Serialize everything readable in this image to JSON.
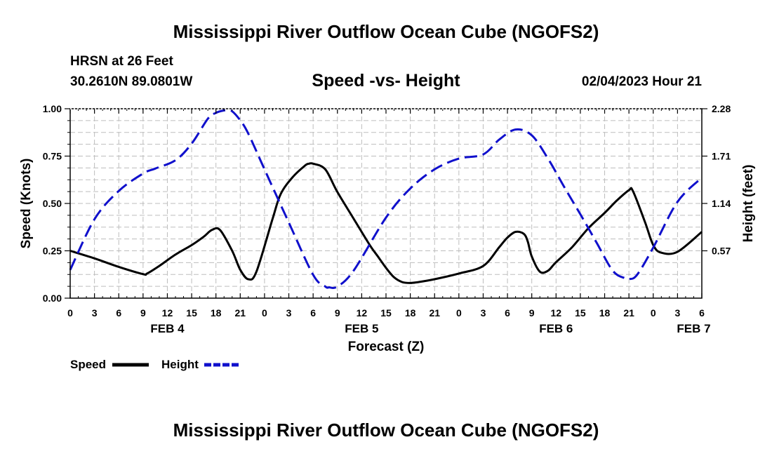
{
  "page": {
    "top_title": "Mississippi River Outflow Ocean Cube (NGOFS2)",
    "bottom_title": "Mississippi River Outflow Ocean Cube (NGOFS2)"
  },
  "header": {
    "station": "HRSN at 26 Feet",
    "coords": "30.2610N  89.0801W",
    "subtitle": "Speed -vs- Height",
    "datetime": "02/04/2023 Hour 21"
  },
  "colors": {
    "speed": "#000000",
    "height": "#1010cc",
    "grid": "#bdbdbd"
  },
  "chart_data": {
    "type": "line",
    "title": "Speed -vs- Height",
    "xlabel": "Forecast (Z)",
    "ylabel": "Speed (Knots)",
    "y2label": "Height (feet)",
    "x_units": "hours from FEB 4 00Z",
    "xlim": [
      0,
      78
    ],
    "ylim": [
      0,
      1
    ],
    "y2lim": [
      0,
      2.28
    ],
    "x_tick_values": [
      0,
      3,
      6,
      9,
      12,
      15,
      18,
      21,
      24,
      27,
      30,
      33,
      36,
      39,
      42,
      45,
      48,
      51,
      54,
      57,
      60,
      63,
      66,
      69,
      72,
      75,
      78
    ],
    "x_tick_labels": [
      "0",
      "3",
      "6",
      "9",
      "12",
      "15",
      "18",
      "21",
      "0",
      "3",
      "6",
      "9",
      "12",
      "15",
      "18",
      "21",
      "0",
      "3",
      "6",
      "9",
      "12",
      "15",
      "18",
      "21",
      "0",
      "3",
      "6"
    ],
    "y_tick_values": [
      0,
      0.25,
      0.5,
      0.75,
      1.0
    ],
    "y_tick_labels": [
      "0.00",
      "0.25",
      "0.50",
      "0.75",
      "1.00"
    ],
    "y2_tick_values": [
      0.57,
      1.14,
      1.71,
      2.28
    ],
    "y2_tick_labels": [
      "0.57",
      "1.14",
      "1.71",
      "2.28"
    ],
    "date_labels": [
      {
        "x": 12,
        "label": "FEB 4"
      },
      {
        "x": 36,
        "label": "FEB 5"
      },
      {
        "x": 60,
        "label": "FEB 6"
      },
      {
        "x": 77,
        "label": "FEB 7"
      }
    ],
    "series": [
      {
        "name": "Speed",
        "axis": "left",
        "style": "solid",
        "x": [
          0,
          3,
          6,
          9,
          9.5,
          11,
          13,
          15,
          16.5,
          17.5,
          18.5,
          20,
          21,
          22,
          23,
          25,
          26,
          27.5,
          29,
          29.5,
          30,
          31.5,
          33,
          35,
          37,
          38,
          39,
          40,
          41,
          42,
          43,
          45,
          48,
          51,
          53,
          54,
          55,
          56,
          56.5,
          57,
          58,
          59,
          60,
          62,
          64,
          66,
          67.5,
          69,
          69.5,
          71,
          72,
          73,
          75,
          78
        ],
        "y": [
          0.25,
          0.21,
          0.165,
          0.127,
          0.13,
          0.17,
          0.23,
          0.28,
          0.325,
          0.36,
          0.36,
          0.25,
          0.15,
          0.1,
          0.14,
          0.42,
          0.55,
          0.64,
          0.7,
          0.71,
          0.71,
          0.68,
          0.56,
          0.42,
          0.28,
          0.22,
          0.16,
          0.11,
          0.085,
          0.08,
          0.085,
          0.1,
          0.13,
          0.17,
          0.27,
          0.32,
          0.35,
          0.34,
          0.3,
          0.22,
          0.14,
          0.145,
          0.19,
          0.27,
          0.37,
          0.45,
          0.515,
          0.57,
          0.565,
          0.4,
          0.28,
          0.24,
          0.245,
          0.35
        ]
      },
      {
        "name": "Height",
        "axis": "right",
        "style": "dashed",
        "x": [
          0,
          3,
          6,
          9,
          10.5,
          13,
          15,
          17,
          18,
          19,
          19.5,
          20,
          21,
          22,
          24,
          27,
          30,
          31.5,
          32,
          33,
          35,
          39,
          42,
          45,
          48,
          51,
          53,
          55,
          57,
          59,
          61,
          63,
          65,
          67,
          68.5,
          69,
          70,
          72,
          75,
          78
        ],
        "y": [
          0.34,
          0.95,
          1.29,
          1.5,
          1.56,
          1.66,
          1.86,
          2.16,
          2.23,
          2.26,
          2.26,
          2.25,
          2.14,
          1.98,
          1.55,
          0.91,
          0.28,
          0.14,
          0.13,
          0.14,
          0.33,
          0.97,
          1.32,
          1.55,
          1.68,
          1.73,
          1.91,
          2.03,
          1.96,
          1.68,
          1.34,
          1.01,
          0.67,
          0.33,
          0.24,
          0.23,
          0.28,
          0.61,
          1.16,
          1.45
        ]
      }
    ],
    "legend": {
      "position": "bottom-left",
      "entries": [
        "Speed",
        "Height"
      ]
    }
  }
}
